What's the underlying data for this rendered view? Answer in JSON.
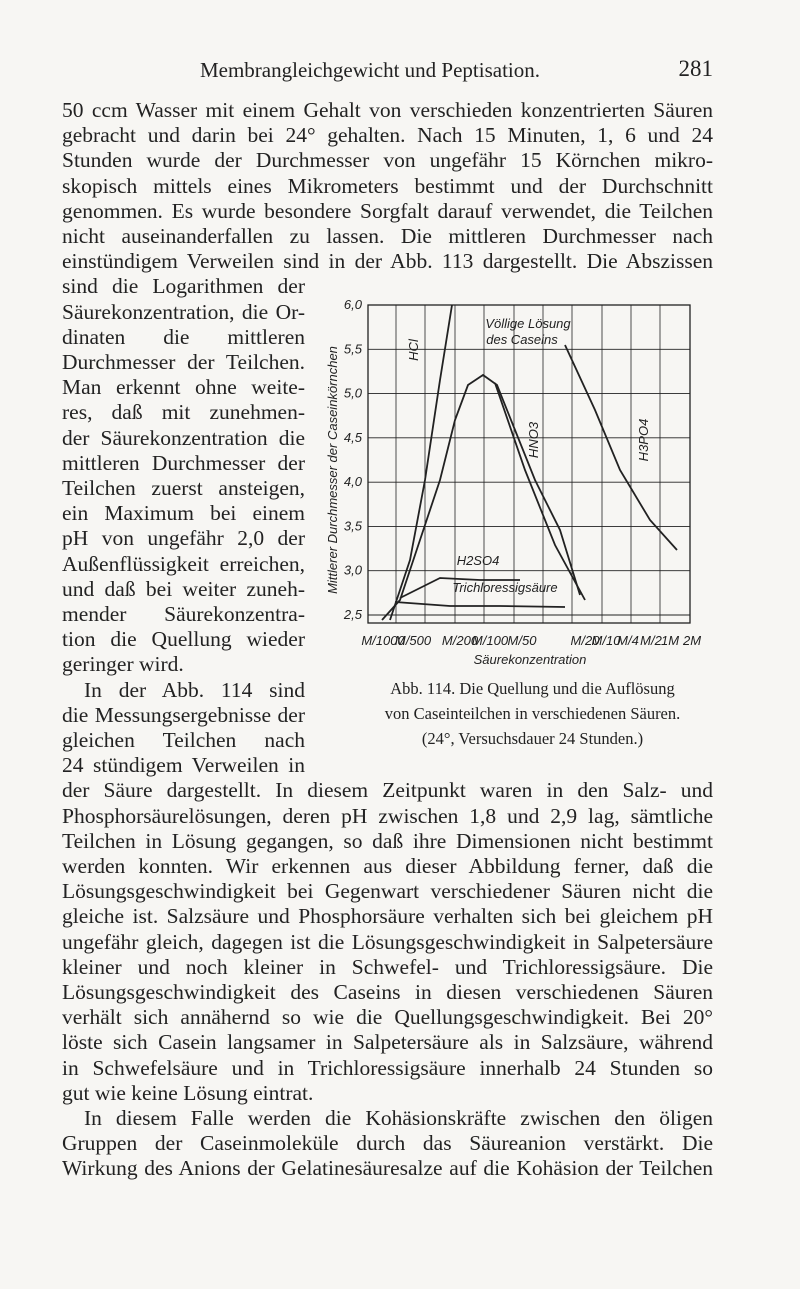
{
  "header": {
    "title": "Membrangleichgewicht und Peptisation.",
    "page_number": "281"
  },
  "paragraph_1": [
    "50 ccm Wasser mit einem Gehalt von verschieden konzentrierten Säuren",
    "gebracht und darin bei 24° gehalten. Nach 15 Minuten, 1, 6 und 24",
    "Stunden wurde der Durchmesser von ungefähr 15 Körnchen mikro-",
    "skopisch mittels eines Mikrometers bestimmt und der Durchschnitt",
    "genommen. Es wurde besondere Sorgfalt darauf verwendet, die Teilchen",
    "nicht auseinanderfallen zu lassen. Die mittleren Durchmesser nach",
    "einstündigem Verweilen sind in der Abb. 113 dargestellt. Die Abszissen"
  ],
  "paragraph_1_narrow": [
    "sind die Logarithmen der",
    "Säurekonzentration, die Or-",
    "dinaten die mittleren",
    "Durchmesser der Teilchen.",
    "Man erkennt ohne weite-",
    "res, daß mit zunehmen-",
    "der Säurekonzentration die",
    "mittleren Durchmesser der",
    "Teilchen zuerst ansteigen,",
    "ein Maximum bei einem",
    "pH von ungefähr 2,0 der",
    "Außenflüssigkeit erreichen,",
    "und daß bei weiter zuneh-",
    "mender Säurekonzentra-",
    "tion die Quellung wieder",
    "geringer wird."
  ],
  "paragraph_2_narrow": [
    "In der Abb. 114 sind",
    "die Messungsergebnisse der",
    "gleichen Teilchen nach",
    "24 stündigem Verweilen in"
  ],
  "paragraph_2": [
    "der Säure dargestellt. In diesem Zeitpunkt waren in den Salz- und",
    "Phosphorsäurelösungen, deren pH zwischen 1,8 und 2,9 lag, sämtliche",
    "Teilchen in Lösung gegangen, so daß ihre Dimensionen nicht bestimmt",
    "werden konnten. Wir erkennen aus dieser Abbildung ferner, daß die",
    "Lösungsgeschwindigkeit bei Gegenwart verschiedener Säuren nicht die",
    "gleiche ist. Salzsäure und Phosphorsäure verhalten sich bei gleichem pH",
    "ungefähr gleich, dagegen ist die Lösungsgeschwindigkeit in Salpetersäure",
    "kleiner und noch kleiner in Schwefel- und Trichloressigsäure. Die",
    "Lösungsgeschwindigkeit des Caseins in diesen verschiedenen Säuren",
    "verhält sich annähernd so wie die Quellungsgeschwindigkeit. Bei 20°",
    "löste sich Casein langsamer in Salpetersäure als in Salzsäure, während",
    "in Schwefelsäure und in Trichloressigsäure innerhalb 24 Stunden so",
    "gut wie keine Lösung eintrat."
  ],
  "paragraph_3": [
    "In diesem Falle werden die Kohäsionskräfte zwischen den öligen",
    "Gruppen der Caseinmoleküle durch das Säureanion verstärkt. Die",
    "Wirkung des Anions der Gelatinesäuresalze auf die Kohäsion der Teilchen"
  ],
  "figure": {
    "y_label": "Mittlerer Durchmesser der Caseinkörnchen",
    "x_label": "Säurekonzentration",
    "ylim": [
      2.5,
      6.0
    ],
    "yticks": [
      {
        "value": 6.0,
        "label": "6,0"
      },
      {
        "value": 5.5,
        "label": "5,5"
      },
      {
        "value": 5.0,
        "label": "5,0"
      },
      {
        "value": 4.5,
        "label": "4,5"
      },
      {
        "value": 4.0,
        "label": "4,0"
      },
      {
        "value": 3.5,
        "label": "3,5"
      },
      {
        "value": 3.0,
        "label": "3,0"
      },
      {
        "value": 2.5,
        "label": "2,5"
      }
    ],
    "xticks": [
      "M/1000",
      "M/500",
      "M/200",
      "M/100",
      "M/50",
      "M/20",
      "M/10",
      "M/4",
      "M/2",
      "1M",
      "2M"
    ],
    "annotations": [
      "Völlige Lösung",
      "des Caseins",
      "H2SO4",
      "Trichloressigsäure",
      "HCl",
      "HNO3",
      "H3PO4"
    ]
  },
  "caption": [
    "Abb. 114. Die Quellung und die Auflösung",
    "von Caseinteilchen in verschiedenen Säuren.",
    "(24°, Versuchsdauer 24 Stunden.)"
  ]
}
